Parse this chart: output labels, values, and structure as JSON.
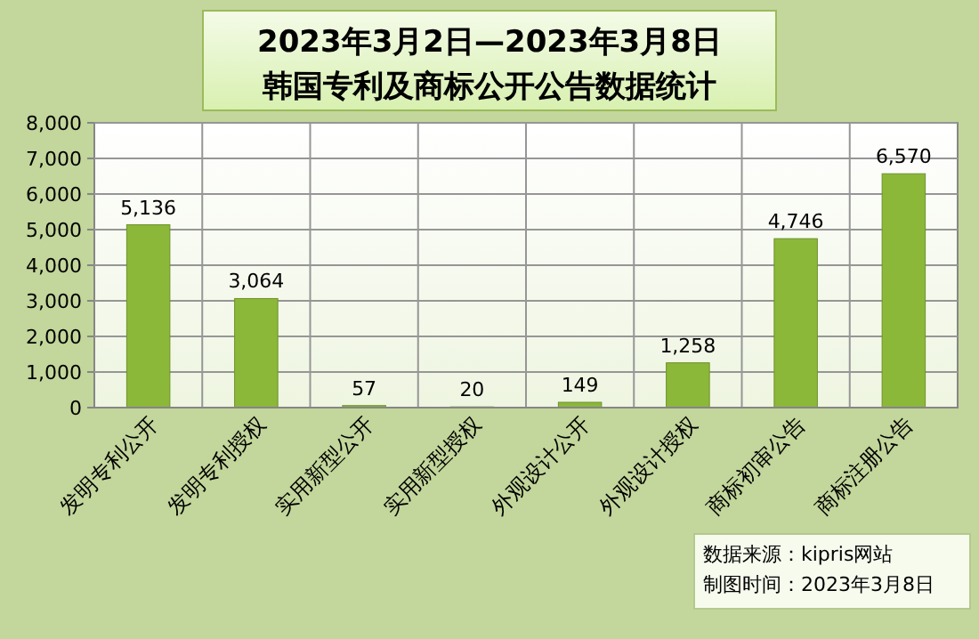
{
  "chart_data": {
    "type": "bar",
    "title": "2023年3月2日—2023年3月8日",
    "subtitle": "韩国专利及商标公开公告数据统计",
    "categories": [
      "发明专利公开",
      "发明专利授权",
      "实用新型公开",
      "实用新型授权",
      "外观设计公开",
      "外观设计授权",
      "商标初审公告",
      "商标注册公告"
    ],
    "values": [
      5136,
      3064,
      57,
      20,
      149,
      1258,
      4746,
      6570
    ],
    "color": "#8cb83a",
    "ylim": [
      0,
      8000
    ],
    "yticks": [
      {
        "value": 0,
        "label": "0"
      },
      {
        "value": 1000,
        "label": "1,000"
      },
      {
        "value": 2000,
        "label": "2,000"
      },
      {
        "value": 3000,
        "label": "3,000"
      },
      {
        "value": 4000,
        "label": "4,000"
      },
      {
        "value": 5000,
        "label": "5,000"
      },
      {
        "value": 6000,
        "label": "6,000"
      },
      {
        "value": 7000,
        "label": "7,000"
      },
      {
        "value": 8000,
        "label": "8,000"
      }
    ],
    "grid": true,
    "value_labels": [
      "5,136",
      "3,064",
      "57",
      "20",
      "149",
      "1,258",
      "4,746",
      "6,570"
    ],
    "annotations": [
      "数据来源：kipris网站",
      "制图时间：2023年3月8日"
    ]
  }
}
